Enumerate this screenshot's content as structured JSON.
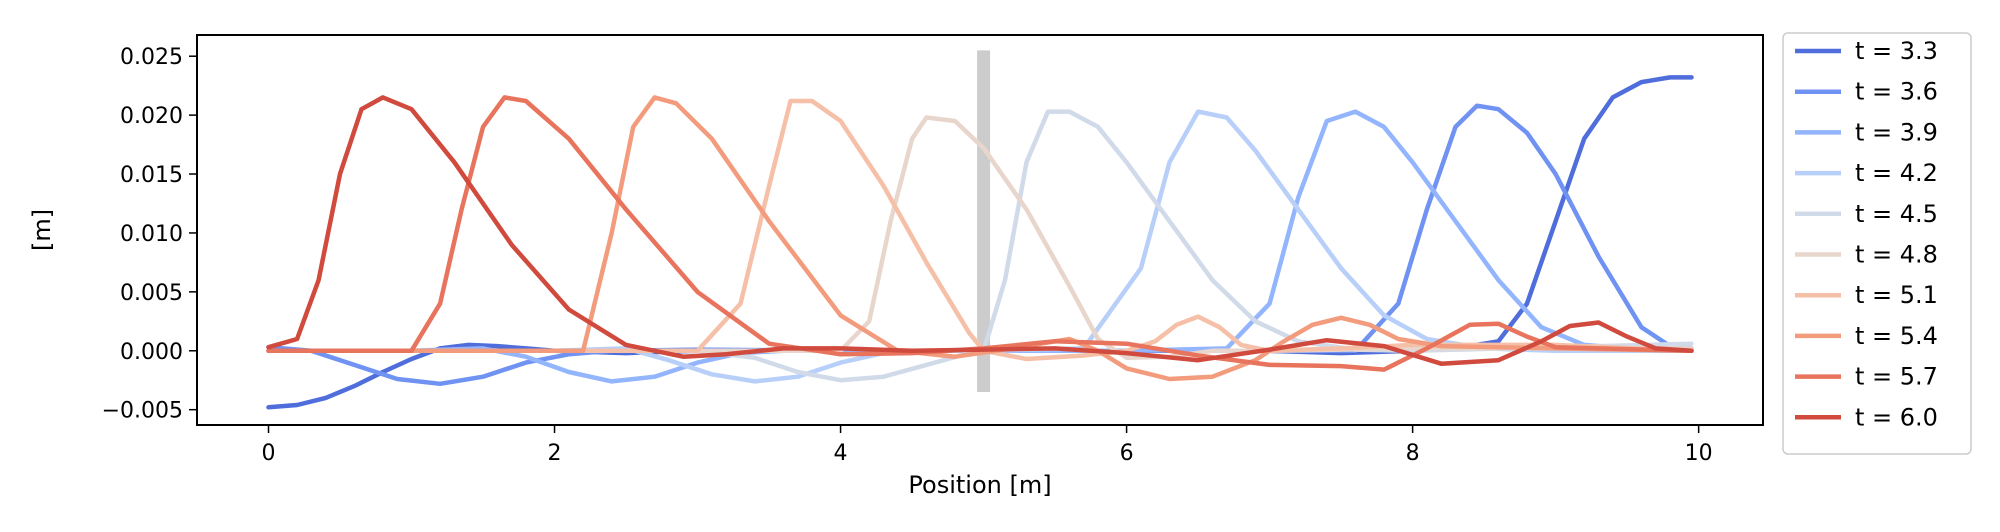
{
  "chart_data": {
    "type": "line",
    "title": "",
    "xlabel": "Position [m]",
    "ylabel": "[m]",
    "xlim": [
      -0.5,
      10.45
    ],
    "ylim": [
      -0.0063,
      0.0268
    ],
    "xticks": [
      0,
      2,
      4,
      6,
      8,
      10
    ],
    "xtick_labels": [
      "0",
      "2",
      "4",
      "6",
      "8",
      "10"
    ],
    "yticks": [
      -0.005,
      0.0,
      0.005,
      0.01,
      0.015,
      0.02,
      0.025
    ],
    "ytick_labels": [
      "−0.005",
      "0.000",
      "0.005",
      "0.010",
      "0.015",
      "0.020",
      "0.025"
    ],
    "grid": false,
    "legend_position": "outside right",
    "vertical_marker": {
      "x": 5.0,
      "y_range": [
        -0.0035,
        0.0255
      ],
      "color": "#cccccc"
    },
    "series": [
      {
        "name": "t = 3.3",
        "color": "#4f6ddb",
        "x": [
          0,
          0.2,
          0.4,
          0.6,
          0.8,
          1.0,
          1.2,
          1.4,
          1.6,
          1.8,
          2.0,
          2.5,
          3.0,
          4.0,
          5.0,
          6.0,
          7.0,
          7.5,
          8.0,
          8.3,
          8.6,
          8.8,
          9.0,
          9.2,
          9.4,
          9.6,
          9.8,
          9.95
        ],
        "y": [
          -0.0048,
          -0.0046,
          -0.004,
          -0.003,
          -0.0018,
          -0.0007,
          0.0002,
          0.0005,
          0.0004,
          0.0002,
          0.0,
          -0.0002,
          0.0,
          0.0,
          0.0,
          0.0,
          0.0,
          -0.0002,
          0.0,
          0.0002,
          0.0008,
          0.004,
          0.011,
          0.018,
          0.0215,
          0.0228,
          0.0232,
          0.0232
        ]
      },
      {
        "name": "t = 3.6",
        "color": "#6f92f3",
        "x": [
          0,
          0.3,
          0.6,
          0.9,
          1.2,
          1.5,
          1.8,
          2.1,
          2.4,
          3.0,
          4.0,
          5.0,
          6.0,
          7.0,
          7.6,
          7.9,
          8.1,
          8.3,
          8.45,
          8.6,
          8.8,
          9.0,
          9.3,
          9.6,
          9.8,
          9.95
        ],
        "y": [
          0.0003,
          0.0,
          -0.0012,
          -0.0024,
          -0.0028,
          -0.0022,
          -0.001,
          -0.0003,
          0.0,
          0.0001,
          0.0,
          0.0,
          0.0,
          0.0,
          0.0,
          0.004,
          0.012,
          0.019,
          0.0208,
          0.0205,
          0.0185,
          0.015,
          0.008,
          0.002,
          0.0004,
          0.0002
        ]
      },
      {
        "name": "t = 3.9",
        "color": "#93b5fe",
        "x": [
          0,
          1.0,
          1.5,
          1.8,
          2.1,
          2.4,
          2.7,
          3.0,
          3.3,
          3.6,
          4.0,
          5.0,
          6.0,
          6.7,
          7.0,
          7.2,
          7.4,
          7.6,
          7.8,
          8.0,
          8.3,
          8.6,
          8.9,
          9.2,
          9.6,
          9.95
        ],
        "y": [
          0.0,
          0.0,
          0.0002,
          -0.0005,
          -0.0018,
          -0.0026,
          -0.0022,
          -0.001,
          -0.0002,
          0.0,
          0.0,
          0.0,
          0.0,
          0.0002,
          0.004,
          0.013,
          0.0195,
          0.0203,
          0.019,
          0.016,
          0.011,
          0.006,
          0.002,
          0.0005,
          0.0001,
          0.0
        ]
      },
      {
        "name": "t = 4.2",
        "color": "#b7cff9",
        "x": [
          0,
          2.0,
          2.5,
          2.8,
          3.1,
          3.4,
          3.7,
          4.0,
          4.3,
          4.6,
          5.0,
          5.7,
          6.1,
          6.3,
          6.5,
          6.7,
          6.9,
          7.2,
          7.5,
          7.8,
          8.1,
          8.5,
          9.0,
          9.95
        ],
        "y": [
          0.0,
          0.0,
          0.0002,
          -0.0008,
          -0.002,
          -0.0026,
          -0.0022,
          -0.001,
          -0.0002,
          0.0,
          0.0,
          0.0002,
          0.007,
          0.016,
          0.0203,
          0.0198,
          0.017,
          0.012,
          0.007,
          0.003,
          0.001,
          0.0002,
          0.0,
          0.0
        ]
      },
      {
        "name": "t = 4.5",
        "color": "#d1dae9",
        "x": [
          0,
          3.0,
          3.4,
          3.7,
          4.0,
          4.3,
          4.6,
          4.9,
          5.0,
          5.15,
          5.3,
          5.45,
          5.6,
          5.8,
          6.0,
          6.3,
          6.6,
          6.9,
          7.2,
          7.6,
          8.0,
          9.0,
          9.95
        ],
        "y": [
          0.0,
          0.0,
          -0.0006,
          -0.0018,
          -0.0025,
          -0.0022,
          -0.0012,
          -0.0002,
          0.0,
          0.006,
          0.016,
          0.0203,
          0.0203,
          0.019,
          0.016,
          0.011,
          0.006,
          0.0025,
          0.0008,
          0.0001,
          0.0,
          0.0003,
          0.0006
        ]
      },
      {
        "name": "t = 4.8",
        "color": "#e8d6cc",
        "x": [
          0,
          3.5,
          4.0,
          4.2,
          4.35,
          4.5,
          4.6,
          4.8,
          5.0,
          5.3,
          5.6,
          5.8,
          6.0,
          6.3,
          6.6,
          7.0,
          7.5,
          8.0,
          9.0,
          9.95
        ],
        "y": [
          0.0,
          0.0,
          0.0,
          0.0025,
          0.011,
          0.018,
          0.0198,
          0.0195,
          0.0172,
          0.012,
          0.0055,
          0.001,
          -0.0006,
          -0.0005,
          0.0,
          0.0,
          0.0001,
          0.0002,
          0.0002,
          0.0002
        ]
      },
      {
        "name": "t = 5.1",
        "color": "#f5c0a7",
        "x": [
          0,
          3.0,
          3.3,
          3.5,
          3.65,
          3.8,
          4.0,
          4.3,
          4.6,
          4.9,
          5.0,
          5.3,
          5.7,
          6.0,
          6.2,
          6.35,
          6.5,
          6.65,
          6.8,
          7.0,
          7.5,
          8.0,
          9.0,
          9.95
        ],
        "y": [
          0.0,
          0.0,
          0.004,
          0.014,
          0.0212,
          0.0212,
          0.0195,
          0.014,
          0.0075,
          0.0015,
          0.0,
          -0.0007,
          -0.0004,
          0.0,
          0.0008,
          0.0022,
          0.0029,
          0.002,
          0.0005,
          0.0,
          0.0002,
          0.0005,
          0.0005,
          0.0
        ]
      },
      {
        "name": "t = 5.4",
        "color": "#f39c7d",
        "x": [
          0,
          2.2,
          2.4,
          2.55,
          2.7,
          2.85,
          3.1,
          3.5,
          4.0,
          4.4,
          4.8,
          5.2,
          5.6,
          5.8,
          6.0,
          6.3,
          6.6,
          6.9,
          7.1,
          7.3,
          7.5,
          7.7,
          7.9,
          8.2,
          8.6,
          9.0,
          9.95
        ],
        "y": [
          0.0,
          0.0,
          0.01,
          0.019,
          0.0215,
          0.021,
          0.018,
          0.011,
          0.003,
          0.0,
          -0.0005,
          0.0002,
          0.001,
          0.0,
          -0.0015,
          -0.0024,
          -0.0022,
          -0.0008,
          0.0008,
          0.0022,
          0.0028,
          0.0022,
          0.001,
          0.0004,
          0.0003,
          0.0002,
          0.0
        ]
      },
      {
        "name": "t = 5.7",
        "color": "#e8745d",
        "x": [
          0,
          1.0,
          1.2,
          1.35,
          1.5,
          1.65,
          1.8,
          2.1,
          2.5,
          3.0,
          3.5,
          4.0,
          4.5,
          5.0,
          5.5,
          6.0,
          6.5,
          7.0,
          7.5,
          7.8,
          8.1,
          8.4,
          8.6,
          8.8,
          9.0,
          9.95
        ],
        "y": [
          0.0,
          0.0,
          0.004,
          0.012,
          0.019,
          0.0215,
          0.0212,
          0.018,
          0.012,
          0.005,
          0.0006,
          -0.0003,
          -0.0002,
          0.0002,
          0.0008,
          0.0006,
          -0.0004,
          -0.0012,
          -0.0013,
          -0.0016,
          0.0002,
          0.0022,
          0.0023,
          0.0012,
          0.0003,
          0.0
        ]
      },
      {
        "name": "t = 6.0",
        "color": "#d04a3e",
        "x": [
          0,
          0.2,
          0.35,
          0.5,
          0.65,
          0.8,
          1.0,
          1.3,
          1.7,
          2.1,
          2.5,
          2.9,
          3.2,
          3.6,
          4.0,
          4.5,
          5.0,
          5.5,
          6.0,
          6.5,
          7.0,
          7.4,
          7.8,
          8.2,
          8.6,
          8.9,
          9.1,
          9.3,
          9.5,
          9.7,
          9.95
        ],
        "y": [
          0.0003,
          0.001,
          0.006,
          0.015,
          0.0205,
          0.0215,
          0.0205,
          0.016,
          0.009,
          0.0035,
          0.0005,
          -0.0005,
          -0.0003,
          0.0002,
          0.0002,
          0.0,
          0.0001,
          0.0002,
          -0.0002,
          -0.0008,
          0.0001,
          0.0009,
          0.0004,
          -0.0011,
          -0.0008,
          0.0008,
          0.0021,
          0.0024,
          0.0012,
          0.0002,
          0.0
        ]
      }
    ]
  }
}
